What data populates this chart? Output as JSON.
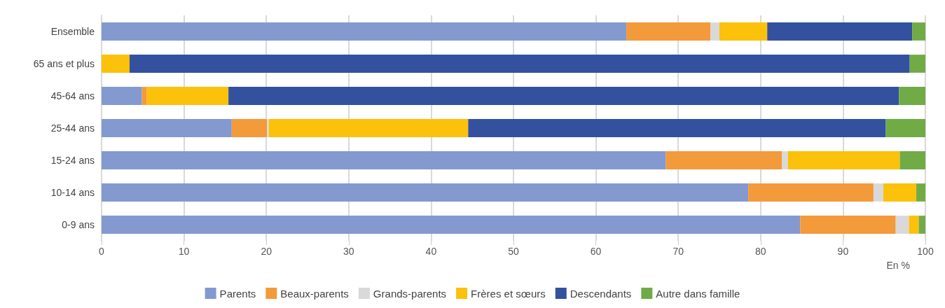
{
  "chart_data": {
    "type": "bar",
    "orientation": "horizontal",
    "stacked": true,
    "xlabel": "En %",
    "categories": [
      "Ensemble",
      "65 ans et plus",
      "45-64 ans",
      "25-44 ans",
      "15-24 ans",
      "10-14 ans",
      "0-9 ans"
    ],
    "series": [
      {
        "name": "Parents",
        "color": "#8399d0",
        "values": [
          63.7,
          null,
          4.9,
          15.8,
          68.5,
          78.5,
          84.8
        ]
      },
      {
        "name": "Beaux-parents",
        "color": "#f39a3b",
        "values": [
          10.2,
          null,
          0.6,
          4.3,
          14.1,
          15.2,
          11.6
        ]
      },
      {
        "name": "Grands-parents",
        "color": "#d9d9d9",
        "values": [
          1.1,
          null,
          null,
          0.2,
          0.7,
          1.2,
          1.6
        ]
      },
      {
        "name": "Frères et sœurs",
        "color": "#fbc10b",
        "values": [
          5.8,
          3.4,
          9.9,
          24.2,
          13.6,
          4.0,
          1.2
        ]
      },
      {
        "name": "Descendants",
        "color": "#34519f",
        "values": [
          17.6,
          94.7,
          81.4,
          50.7,
          null,
          null,
          null
        ]
      },
      {
        "name": "Autre dans famille",
        "color": "#70ab46",
        "values": [
          1.6,
          1.9,
          3.2,
          4.8,
          3.1,
          1.2,
          0.8
        ]
      }
    ],
    "xlim": [
      0,
      100
    ],
    "xticks": [
      0,
      10,
      20,
      30,
      40,
      50,
      60,
      70,
      80,
      90,
      100
    ],
    "grid": "x",
    "legend": "bottom"
  }
}
